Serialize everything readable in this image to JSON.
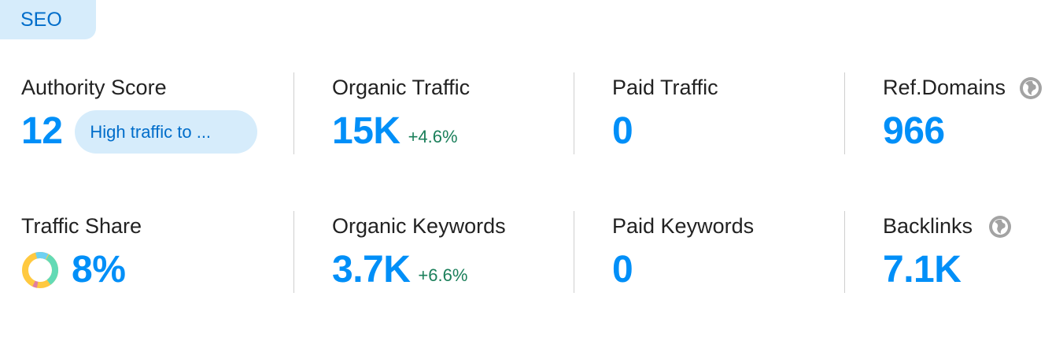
{
  "tab": "SEO",
  "metrics": [
    {
      "label": "Authority Score",
      "value": "12",
      "badge": "High traffic to ..."
    },
    {
      "label": "Organic Traffic",
      "value": "15K",
      "change": "+4.6%"
    },
    {
      "label": "Paid Traffic",
      "value": "0"
    },
    {
      "label": "Ref.Domains",
      "value": "966"
    },
    {
      "label": "Traffic Share",
      "value": "8%"
    },
    {
      "label": "Organic Keywords",
      "value": "3.7K",
      "change": "+6.6%"
    },
    {
      "label": "Paid Keywords",
      "value": "0"
    },
    {
      "label": "Backlinks",
      "value": "7.1K"
    }
  ]
}
